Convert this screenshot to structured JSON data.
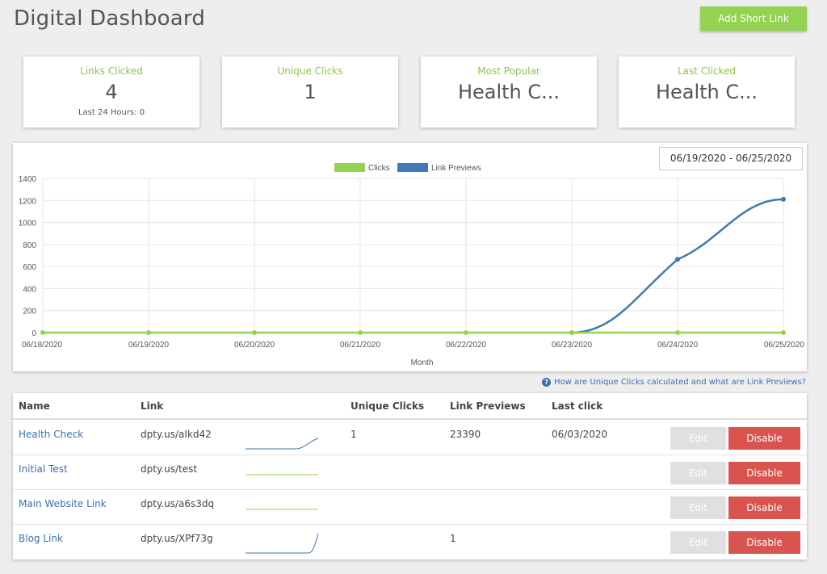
{
  "header": {
    "title": "Digital Dashboard",
    "add_button_label": "Add Short Link"
  },
  "stats": [
    {
      "label": "Links Clicked",
      "value": "4",
      "sub": "Last 24 Hours: 0"
    },
    {
      "label": "Unique Clicks",
      "value": "1",
      "sub": ""
    },
    {
      "label": "Most Popular",
      "value": "Health C...",
      "sub": ""
    },
    {
      "label": "Last Clicked",
      "value": "Health C...",
      "sub": ""
    }
  ],
  "date_range": "06/19/2020 - 06/25/2020",
  "colors": {
    "clicks": "#94d351",
    "link_previews": "#3f7ab5",
    "accent_green": "#8ec549",
    "disable_red": "#d9534f",
    "link_blue": "#3a6fb0"
  },
  "chart_data": {
    "type": "line",
    "x": [
      "06/18/2020",
      "06/19/2020",
      "06/20/2020",
      "06/21/2020",
      "06/22/2020",
      "06/23/2020",
      "06/24/2020",
      "06/25/2020"
    ],
    "series": [
      {
        "name": "Clicks",
        "values": [
          0,
          0,
          0,
          0,
          0,
          0,
          0,
          0
        ]
      },
      {
        "name": "Link Previews",
        "values": [
          null,
          null,
          null,
          null,
          null,
          0,
          665,
          1210
        ]
      }
    ],
    "xlabel": "Month",
    "ylabel": "",
    "ylim": [
      0,
      1400
    ],
    "yticks": [
      0,
      200,
      400,
      600,
      800,
      1000,
      1200,
      1400
    ],
    "legend": "top-center",
    "grid": true
  },
  "help_link": "How are Unique Clicks calculated and what are Link Previews?",
  "table": {
    "headers": {
      "name": "Name",
      "link": "Link",
      "unique": "Unique Clicks",
      "previews": "Link Previews",
      "last": "Last click"
    },
    "edit_label": "Edit",
    "disable_label": "Disable",
    "rows": [
      {
        "name": "Health Check",
        "link": "dpty.us/aIkd42",
        "unique": "1",
        "previews": "23390",
        "last": "06/03/2020",
        "spark": "rising-end"
      },
      {
        "name": "Initial Test",
        "link": "dpty.us/test",
        "unique": "",
        "previews": "",
        "last": "",
        "spark": "flat"
      },
      {
        "name": "Main Website Link",
        "link": "dpty.us/a6s3dq",
        "unique": "",
        "previews": "",
        "last": "",
        "spark": "flat"
      },
      {
        "name": "Blog Link",
        "link": "dpty.us/XPf73g",
        "unique": "",
        "previews": "1",
        "last": "",
        "spark": "spike-end"
      }
    ]
  }
}
